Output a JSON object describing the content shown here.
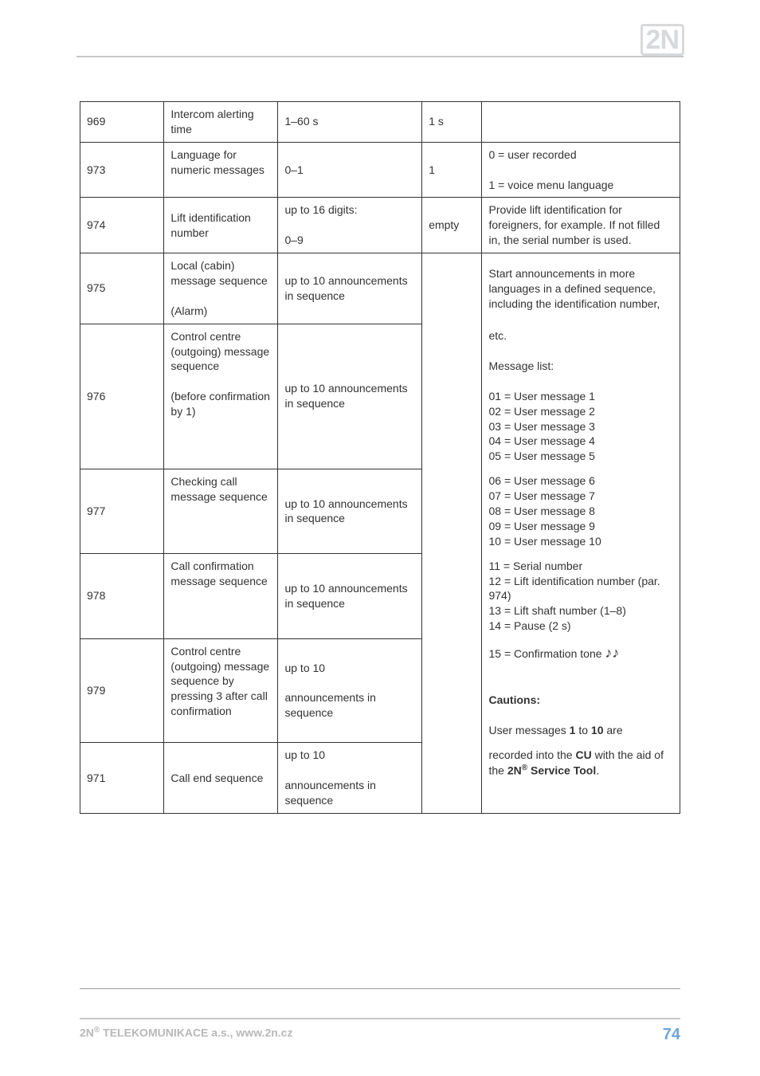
{
  "logo_text": "2N",
  "footer": {
    "company": "2N",
    "reg": "®",
    "rest": " TELEKOMUNIKACE a.s., www.2n.cz",
    "page_num": "74"
  },
  "rows": {
    "r969": {
      "c1": "969",
      "c2": "Intercom alerting time",
      "c3": "1–60 s",
      "c4": "1 s",
      "c5": ""
    },
    "r973": {
      "c1": "973",
      "c2": "Language for numeric messages",
      "c3": "0–1",
      "c4": "1",
      "c5a": "0 = user recorded",
      "c5b": "1 = voice menu language"
    },
    "r974": {
      "c1": "974",
      "c2": "Lift identification number",
      "c3a": "up to 16 digits:",
      "c3b": "0–9",
      "c4": "empty",
      "c5": "Provide lift identification for foreigners, for example. If not filled in, the serial number is used."
    },
    "r975": {
      "c1": "975",
      "c2a": "Local (cabin) message sequence",
      "c2b": "(Alarm)",
      "c3": "up to 10 announcements in sequence",
      "c5": "Start announcements in more languages in a defined sequence, including the identification number,"
    },
    "r976": {
      "c1": "976",
      "c2a": "Control centre (outgoing) message sequence",
      "c2b": "(before confirmation by 1)",
      "c3": "up to 10 announcements in sequence",
      "c5_lines": [
        "etc.",
        "",
        "Message list:",
        "",
        "01 = User message 1",
        "02 = User message 2",
        "03 = User message 3",
        "04 = User message 4",
        "05 = User message 5"
      ]
    },
    "r977": {
      "c1": "977",
      "c2": "Checking call message sequence",
      "c3": "up to 10 announcements in sequence",
      "c5_lines": [
        "06 = User message 6",
        "07 = User message 7",
        "08 = User message 8",
        "09 = User message 9",
        "10 = User message 10"
      ]
    },
    "r978": {
      "c1": "978",
      "c2": "Call confirmation message sequence",
      "c3": "up to 10 announcements in sequence",
      "c5_lines": [
        "11 = Serial number",
        "12 = Lift identification number (par. 974)",
        "13 = Lift shaft number (1–8)",
        "14 = Pause (2 s)"
      ]
    },
    "r979": {
      "c1": "979",
      "c2": "Control centre (outgoing) message sequence by pressing 3 after call confirmation",
      "c3a": "up to 10",
      "c3b": "announcements in sequence",
      "c5_a": "15 = Confirmation tone ",
      "c5_note": "♪♪",
      "c5_b1": "Cautions:",
      "c5_b2a": "User messages ",
      "c5_b2b": "1",
      "c5_b2c": " to ",
      "c5_b2d": "10",
      "c5_b2e": " are"
    },
    "r971": {
      "c1": "971",
      "c2": "Call end sequence",
      "c3a": "up to 10",
      "c3b": "announcements in sequence",
      "c5_a1": "recorded into the ",
      "c5_a2": "CU",
      "c5_a3": " with the aid of the ",
      "c5_a4": "2N",
      "c5_a5": "®",
      "c5_a6": " Service Tool",
      "c5_a7": "."
    }
  }
}
